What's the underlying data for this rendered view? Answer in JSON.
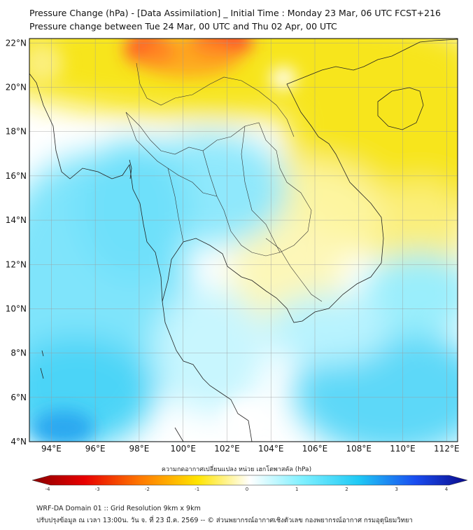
{
  "title": {
    "line1": "Pressure Change (hPa) - [Data Assimilation] _ Initial Time : Monday 23 Mar, 06 UTC FCST+216",
    "line2": "Pressure change between Tue 24 Mar, 00 UTC and Thu 02 Apr, 00 UTC"
  },
  "map": {
    "lon_range": [
      93,
      112.5
    ],
    "lat_range": [
      4,
      22.2
    ],
    "lat_ticks": [
      {
        "value": 22,
        "label": "22°N"
      },
      {
        "value": 20,
        "label": "20°N"
      },
      {
        "value": 18,
        "label": "18°N"
      },
      {
        "value": 16,
        "label": "16°N"
      },
      {
        "value": 14,
        "label": "14°N"
      },
      {
        "value": 12,
        "label": "12°N"
      },
      {
        "value": 10,
        "label": "10°N"
      },
      {
        "value": 8,
        "label": "8°N"
      },
      {
        "value": 6,
        "label": "6°N"
      },
      {
        "value": 4,
        "label": "4°N"
      }
    ],
    "lon_ticks": [
      {
        "value": 94,
        "label": "94°E"
      },
      {
        "value": 96,
        "label": "96°E"
      },
      {
        "value": 98,
        "label": "98°E"
      },
      {
        "value": 100,
        "label": "100°E"
      },
      {
        "value": 102,
        "label": "102°E"
      },
      {
        "value": 104,
        "label": "104°E"
      },
      {
        "value": 106,
        "label": "106°E"
      },
      {
        "value": 108,
        "label": "108°E"
      },
      {
        "value": 110,
        "label": "110°E"
      },
      {
        "value": 112,
        "label": "112°E"
      }
    ],
    "colors": {
      "strong_rise": "#ff3b2a",
      "rise": "#ff9a1f",
      "slight_rise": "#f2e300",
      "neutral": "#ffffff",
      "slight_fall": "#9ef0ff",
      "fall": "#37d3f5",
      "strong_fall": "#1a90ee"
    }
  },
  "colorbar": {
    "title": "ความกดอากาศเปลี่ยนแปลง หน่วย เฮกโตพาสคัล (hPa)",
    "range": [
      -4,
      4
    ],
    "ticks": [
      "-4",
      "-3",
      "-2",
      "-1",
      "0",
      "1",
      "2",
      "3",
      "4"
    ]
  },
  "footer": {
    "line1": "WRF-DA Domain 01 :: Grid Resolution 9km x 9km",
    "line2": "ปรับปรุงข้อมูล ณ เวลา 13:00น. วัน จ. ที่ 23 มี.ค. 2569 -- © ส่วนพยากรณ์อากาศเชิงตัวเลข กองพยากรณ์อากาศ กรมอุตุนิยมวิทยา"
  }
}
